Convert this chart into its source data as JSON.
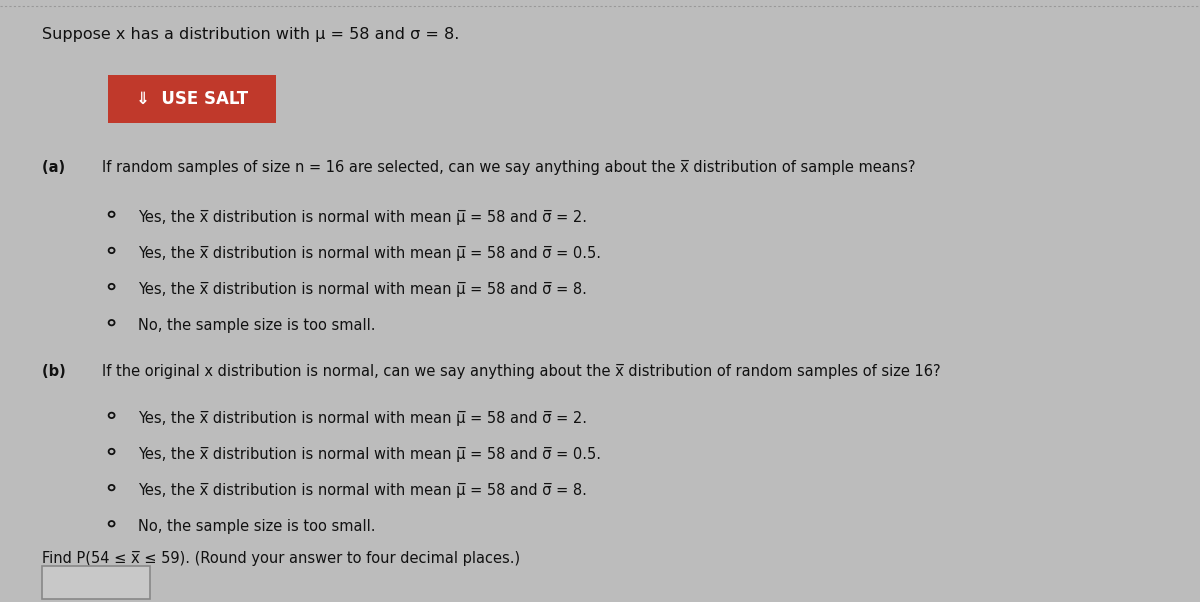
{
  "background_color": "#bcbcbc",
  "content_bg": "#d0d0d0",
  "title_text": "Suppose x has a distribution with μ = 58 and σ = 8.",
  "button_text": "⇓  USE SALT",
  "button_bg": "#c0392b",
  "button_text_color": "#ffffff",
  "part_a_label": "(a)  ",
  "part_a_question": "If random samples of size n = 16 are selected, can we say anything about the x̅ distribution of sample means?",
  "part_a_options": [
    "Yes, the x̅ distribution is normal with mean μ̅ = 58 and σ̅ = 2.",
    "Yes, the x̅ distribution is normal with mean μ̅ = 58 and σ̅ = 0.5.",
    "Yes, the x̅ distribution is normal with mean μ̅ = 58 and σ̅ = 8.",
    "No, the sample size is too small."
  ],
  "part_b_label": "(b)  ",
  "part_b_question": "If the original x distribution is normal, can we say anything about the x̅ distribution of random samples of size 16?",
  "part_b_options": [
    "Yes, the x̅ distribution is normal with mean μ̅ = 58 and σ̅ = 2.",
    "Yes, the x̅ distribution is normal with mean μ̅ = 58 and σ̅ = 0.5.",
    "Yes, the x̅ distribution is normal with mean μ̅ = 58 and σ̅ = 8.",
    "No, the sample size is too small."
  ],
  "find_text": "Find P(54 ≤ x̅ ≤ 59). (Round your answer to four decimal places.)",
  "text_color": "#111111",
  "radio_color": "#111111",
  "font_size_title": 11.5,
  "font_size_body": 10.5,
  "font_size_button": 12,
  "dotted_line_color": "#999999"
}
